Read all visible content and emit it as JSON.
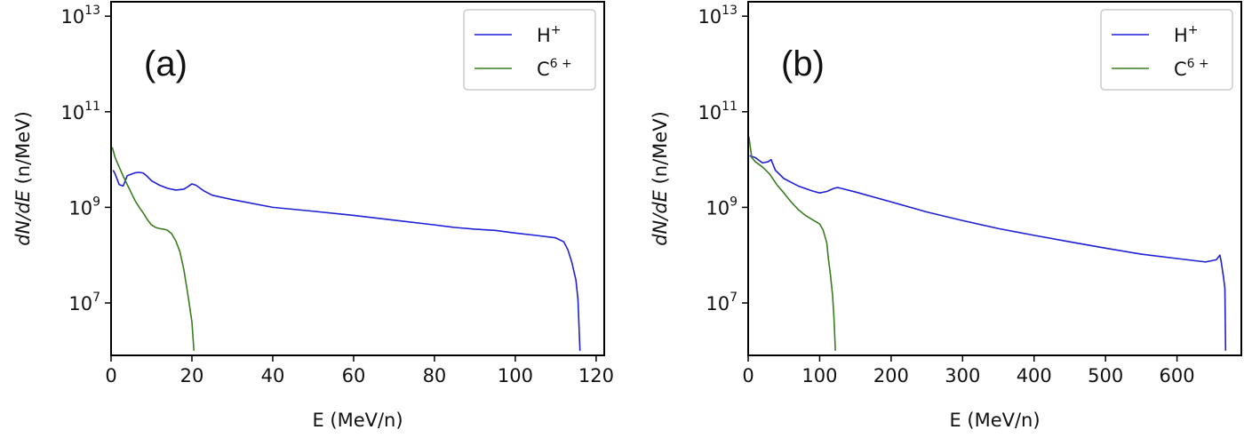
{
  "chart_data": [
    {
      "type": "line",
      "panel_label": "(a)",
      "xlabel": "E (MeV/n)",
      "ylabel_italic_part": "dN/dE",
      "ylabel_unit": " (n/MeV)",
      "yscale": "log",
      "xlim": [
        0,
        122
      ],
      "ylim": [
        800000.0,
        20000000000000.0
      ],
      "xticks": [
        0,
        20,
        40,
        60,
        80,
        100,
        120
      ],
      "xtick_labels": [
        "0",
        "20",
        "40",
        "60",
        "80",
        "100",
        "120"
      ],
      "yticks": [
        10000000.0,
        1000000000.0,
        100000000000.0,
        10000000000000.0
      ],
      "ytick_labels": [
        {
          "base": "10",
          "exp": "7"
        },
        {
          "base": "10",
          "exp": "9"
        },
        {
          "base": "10",
          "exp": "11"
        },
        {
          "base": "10",
          "exp": "13"
        }
      ],
      "legend_position": "top-right",
      "series": [
        {
          "name": "H",
          "name_sup": "+",
          "color": "#1f1fd6",
          "points": [
            [
              0.5,
              6000000000.0
            ],
            [
              1,
              5000000000.0
            ],
            [
              2,
              3000000000.0
            ],
            [
              3,
              2800000000.0
            ],
            [
              4,
              4600000000.0
            ],
            [
              6,
              5300000000.0
            ],
            [
              7,
              5400000000.0
            ],
            [
              8,
              5200000000.0
            ],
            [
              9,
              4400000000.0
            ],
            [
              10,
              3600000000.0
            ],
            [
              12,
              2900000000.0
            ],
            [
              14,
              2500000000.0
            ],
            [
              16,
              2300000000.0
            ],
            [
              18,
              2400000000.0
            ],
            [
              19,
              2700000000.0
            ],
            [
              20,
              3100000000.0
            ],
            [
              21,
              2900000000.0
            ],
            [
              23,
              2200000000.0
            ],
            [
              25,
              1800000000.0
            ],
            [
              30,
              1450000000.0
            ],
            [
              40,
              1000000000.0
            ],
            [
              50,
              830000000.0
            ],
            [
              60,
              680000000.0
            ],
            [
              70,
              540000000.0
            ],
            [
              80,
              430000000.0
            ],
            [
              85,
              380000000.0
            ],
            [
              90,
              350000000.0
            ],
            [
              95,
              330000000.0
            ],
            [
              100,
              290000000.0
            ],
            [
              105,
              260000000.0
            ],
            [
              110,
              230000000.0
            ],
            [
              112,
              190000000.0
            ],
            [
              113,
              130000000.0
            ],
            [
              114,
              70000000.0
            ],
            [
              115,
              30000000.0
            ],
            [
              115.5,
              12000000.0
            ],
            [
              116,
              1000000.0
            ]
          ]
        },
        {
          "name": "C",
          "name_sup": "6 +",
          "color": "#3a7d1f",
          "points": [
            [
              0.3,
              18000000000.0
            ],
            [
              1,
              11000000000.0
            ],
            [
              2,
              7000000000.0
            ],
            [
              3,
              4500000000.0
            ],
            [
              4,
              3000000000.0
            ],
            [
              5,
              2000000000.0
            ],
            [
              6,
              1350000000.0
            ],
            [
              7,
              1000000000.0
            ],
            [
              8,
              750000000.0
            ],
            [
              9,
              550000000.0
            ],
            [
              10,
              430000000.0
            ],
            [
              11,
              380000000.0
            ],
            [
              12,
              360000000.0
            ],
            [
              13,
              350000000.0
            ],
            [
              14,
              330000000.0
            ],
            [
              15,
              280000000.0
            ],
            [
              16,
              200000000.0
            ],
            [
              17,
              120000000.0
            ],
            [
              18,
              50000000.0
            ],
            [
              19,
              15000000.0
            ],
            [
              20,
              4000000.0
            ],
            [
              20.5,
              1000000.0
            ]
          ]
        }
      ]
    },
    {
      "type": "line",
      "panel_label": "(b)",
      "xlabel": "E (MeV/n)",
      "ylabel_italic_part": "dN/dE",
      "ylabel_unit": " (n/MeV)",
      "yscale": "log",
      "xlim": [
        0,
        690
      ],
      "ylim": [
        800000.0,
        20000000000000.0
      ],
      "xticks": [
        0,
        100,
        200,
        300,
        400,
        500,
        600
      ],
      "xtick_labels": [
        "0",
        "100",
        "200",
        "300",
        "400",
        "500",
        "600"
      ],
      "yticks": [
        10000000.0,
        1000000000.0,
        100000000000.0,
        10000000000000.0
      ],
      "ytick_labels": [
        {
          "base": "10",
          "exp": "7"
        },
        {
          "base": "10",
          "exp": "9"
        },
        {
          "base": "10",
          "exp": "11"
        },
        {
          "base": "10",
          "exp": "13"
        }
      ],
      "legend_position": "top-right",
      "series": [
        {
          "name": "H",
          "name_sup": "+",
          "color": "#1f1fd6",
          "points": [
            [
              2,
              12000000000.0
            ],
            [
              10,
              11000000000.0
            ],
            [
              20,
              8500000000.0
            ],
            [
              28,
              9000000000.0
            ],
            [
              32,
              10000000000.0
            ],
            [
              38,
              6000000000.0
            ],
            [
              50,
              4000000000.0
            ],
            [
              70,
              2800000000.0
            ],
            [
              90,
              2200000000.0
            ],
            [
              100,
              2000000000.0
            ],
            [
              110,
              2150000000.0
            ],
            [
              120,
              2500000000.0
            ],
            [
              125,
              2600000000.0
            ],
            [
              130,
              2500000000.0
            ],
            [
              150,
              2100000000.0
            ],
            [
              200,
              1300000000.0
            ],
            [
              250,
              800000000.0
            ],
            [
              300,
              530000000.0
            ],
            [
              350,
              360000000.0
            ],
            [
              400,
              260000000.0
            ],
            [
              450,
              190000000.0
            ],
            [
              500,
              140000000.0
            ],
            [
              550,
              105000000.0
            ],
            [
              600,
              85000000.0
            ],
            [
              640,
              72000000.0
            ],
            [
              655,
              80000000.0
            ],
            [
              660,
              100000000.0
            ],
            [
              662,
              70000000.0
            ],
            [
              665,
              35000000.0
            ],
            [
              667,
              20000000.0
            ],
            [
              668,
              1000000.0
            ]
          ]
        },
        {
          "name": "C",
          "name_sup": "6 +",
          "color": "#3a7d1f",
          "points": [
            [
              1,
              30000000000.0
            ],
            [
              5,
              11000000000.0
            ],
            [
              10,
              9000000000.0
            ],
            [
              20,
              7000000000.0
            ],
            [
              30,
              5000000000.0
            ],
            [
              40,
              3000000000.0
            ],
            [
              50,
              2000000000.0
            ],
            [
              60,
              1300000000.0
            ],
            [
              70,
              900000000.0
            ],
            [
              80,
              680000000.0
            ],
            [
              90,
              550000000.0
            ],
            [
              100,
              450000000.0
            ],
            [
              105,
              330000000.0
            ],
            [
              110,
              180000000.0
            ],
            [
              112,
              90000000.0
            ],
            [
              115,
              40000000.0
            ],
            [
              118,
              15000000.0
            ],
            [
              120,
              5000000.0
            ],
            [
              122,
              1000000.0
            ]
          ]
        }
      ]
    }
  ]
}
